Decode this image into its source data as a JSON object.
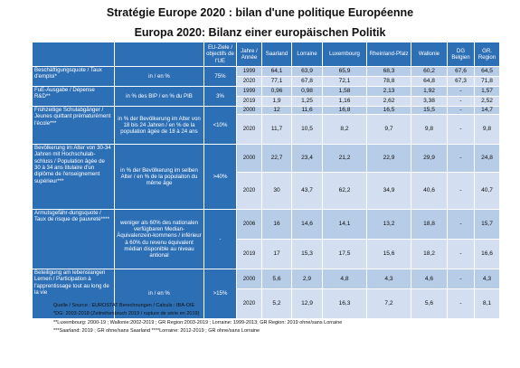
{
  "title_fr": "Stratégie Europe 2020 : bilan d'une politique Européenne",
  "title_de": "Europa 2020: Bilanz einer europäischen Politik",
  "header": {
    "col_indicator": "",
    "col_unit": "",
    "col_objective": "EU-Ziele / objectifs de l'UE",
    "col_year": "Jahre / Année",
    "regions": [
      "Saarland",
      "Lorraine",
      "Luxembourg",
      "Rheinland-Pfalz",
      "Wallonie",
      "DG Belgien",
      "GR. Region"
    ]
  },
  "groups": [
    {
      "indicator": "Beschäftigungsquote / Taux d'emploi*",
      "unit": "in / en %",
      "objective": "75%",
      "rows": [
        {
          "year": "1999",
          "values": [
            "64,1",
            "63,9",
            "65,9",
            "68,3",
            "60,2",
            "67,6",
            "64,5"
          ]
        },
        {
          "year": "2020",
          "values": [
            "77,1",
            "67,8",
            "72,1",
            "78,8",
            "64,8",
            "67,3",
            "71,8"
          ]
        }
      ]
    },
    {
      "indicator": "FuE-Ausgabe / Dépense R&D**",
      "unit": "in % des BIP / en % du PIB",
      "objective": "3%",
      "rows": [
        {
          "year": "1999",
          "values": [
            "0,96",
            "0,98",
            "1,58",
            "2,13",
            "1,92",
            "-",
            "1,57"
          ]
        },
        {
          "year": "2019",
          "values": [
            "1,9",
            "1,25",
            "1,16",
            "2,62",
            "3,38",
            "-",
            "2,52"
          ]
        }
      ]
    },
    {
      "indicator": "Frühzeitige Schulabgänger / Jeunes quittant prématurément l'école***",
      "unit": "in % der Bevölkerung im Alter von 18 bis 24 Jahren / en % de la population âgée de 18 à 24 ans",
      "objective": "<10%",
      "rows": [
        {
          "year": "2000",
          "values": [
            "12",
            "11,6",
            "16,8",
            "16,5",
            "15,5",
            "-",
            "14,7"
          ]
        },
        {
          "year": "2020",
          "values": [
            "11,7",
            "10,5",
            "8,2",
            "9,7",
            "9,8",
            "-",
            "9,8"
          ]
        }
      ]
    },
    {
      "indicator": "Bevölkerung im Alter von 30-34 Jahren mit Hochschulab-schluss / Population âgée de 30 à 34 ans titulaire d'un diplôme de l'enseignement supérieur***",
      "unit": "in % der Bevölkerung im selben Alter / en % de la populaiton du même âge",
      "objective": ">40%",
      "rows": [
        {
          "year": "2000",
          "values": [
            "22,7",
            "23,4",
            "21,2",
            "22,9",
            "29,9",
            "-",
            "24,8"
          ]
        },
        {
          "year": "2020",
          "values": [
            "30",
            "43,7",
            "62,2",
            "34,9",
            "40,6",
            "-",
            "40,7"
          ]
        }
      ]
    },
    {
      "indicator": "Armutsgefähr-dungsquote / Taux de risque de pauvreté****",
      "unit": "weniger als 60% des nationalen verfügbaren Median-Äquivalenzein-kommens / inférieur à 60% du revenu équivalent médian disponible au niveau antional",
      "objective": "-",
      "rows": [
        {
          "year": "2006",
          "values": [
            "16",
            "14,6",
            "14,1",
            "13,2",
            "18,8",
            "-",
            "15,7"
          ]
        },
        {
          "year": "2019",
          "values": [
            "17",
            "15,3",
            "17,5",
            "15,6",
            "18,2",
            "-",
            "16,6"
          ]
        }
      ]
    },
    {
      "indicator": "Beteiligung am lebenslangen Lernen / Participation à l'apprentissage tout au long de la vie",
      "unit": "in / en %",
      "objective": ">15%",
      "rows": [
        {
          "year": "2000",
          "values": [
            "5,6",
            "2,9",
            "4,8",
            "4,3",
            "4,6",
            "-",
            "4,3"
          ]
        },
        {
          "year": "2020",
          "values": [
            "5,2",
            "12,9",
            "16,3",
            "7,2",
            "5,6",
            "-",
            "8,1"
          ]
        }
      ]
    }
  ],
  "notes": [
    "Quelle / Source : EUROSTAT          Berechnungen / Calculs : IBA-OIE",
    "*DG: 2003-2018 (Zeitreihenbruch 2019 / rupture de série en 2019)",
    "**Luxembourg: 2000-19 ; Wallonie:2002-2019 ; GR Region:2003-2019 ; Lorraine: 1999-2013; GR Region: 2019 ohne/sans Lorraine",
    "***Saarland: 2019 ; GR ohne/sans Saarland        ****Lorraine: 2012-2019 ; GR ohne/sans Lorraine"
  ]
}
